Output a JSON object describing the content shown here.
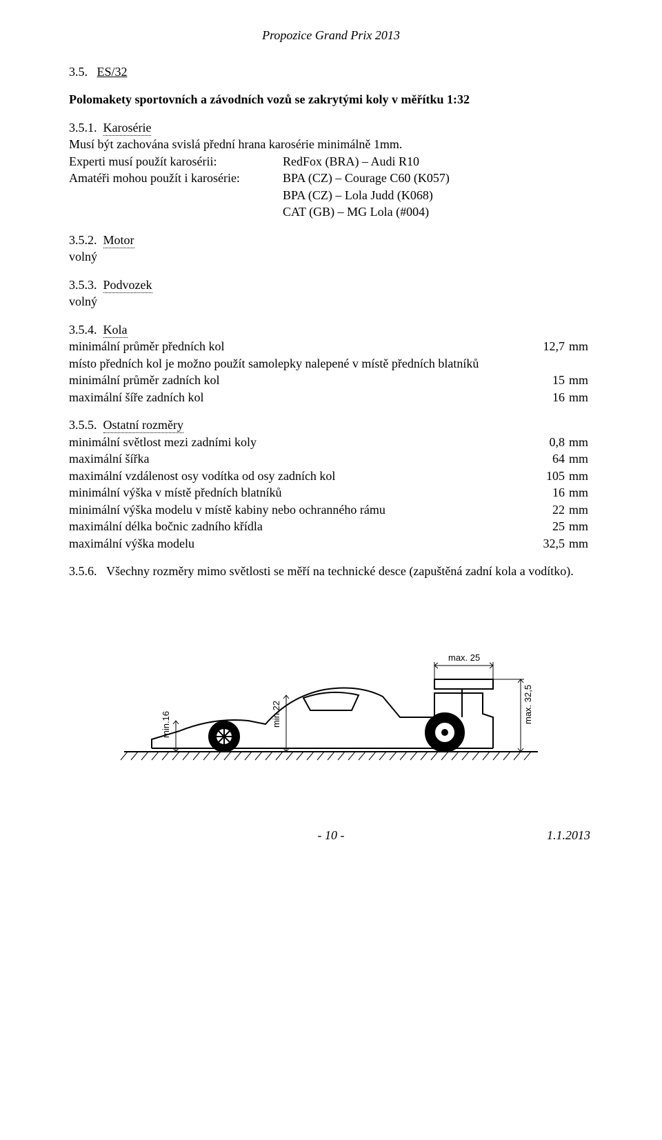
{
  "header": {
    "title": "Propozice Grand Prix 2013"
  },
  "sec35": {
    "num": "3.5.",
    "code": "ES/32",
    "subtitle": "Polomakety sportovních a závodních vozů se zakrytými koly v měřítku 1:32"
  },
  "s351": {
    "num": "3.5.1.",
    "title": "Karosérie",
    "line1": "Musí být zachována svislá přední hrana karosérie minimálně 1mm.",
    "expertLabel": "Experti musí použít karosérii:",
    "amatLabel": "Amatéři mohou použít i karosérie:",
    "lines": [
      "RedFox (BRA) – Audi R10",
      "BPA (CZ) – Courage C60 (K057)",
      "BPA (CZ) – Lola Judd (K068)",
      "CAT (GB) – MG Lola (#004)"
    ]
  },
  "s352": {
    "num": "3.5.2.",
    "title": "Motor",
    "val": "volný"
  },
  "s353": {
    "num": "3.5.3.",
    "title": "Podvozek",
    "val": "volný"
  },
  "s354": {
    "num": "3.5.4.",
    "title": "Kola",
    "rows": [
      {
        "label": "minimální průměr předních kol",
        "val": "12,7",
        "unit": "mm"
      },
      {
        "label": "místo předních kol je možno použít samolepky nalepené v místě předních blatníků",
        "val": "",
        "unit": ""
      },
      {
        "label": "minimální průměr zadních kol",
        "val": "15",
        "unit": "mm"
      },
      {
        "label": "maximální šíře zadních kol",
        "val": "16",
        "unit": "mm"
      }
    ]
  },
  "s355": {
    "num": "3.5.5.",
    "title": "Ostatní rozměry",
    "rows": [
      {
        "label": "minimální světlost mezi zadními koly",
        "val": "0,8",
        "unit": "mm"
      },
      {
        "label": "maximální šířka",
        "val": "64",
        "unit": "mm"
      },
      {
        "label": "maximální vzdálenost osy vodítka od osy zadních kol",
        "val": "105",
        "unit": "mm"
      },
      {
        "label": "minimální výška v místě předních blatníků",
        "val": "16",
        "unit": "mm"
      },
      {
        "label": "minimální výška modelu v místě kabiny nebo ochranného rámu",
        "val": "22",
        "unit": "mm"
      },
      {
        "label": "maximální délka bočnic zadního křídla",
        "val": "25",
        "unit": "mm"
      },
      {
        "label": "maximální výška modelu",
        "val": "32,5",
        "unit": "mm"
      }
    ]
  },
  "s356": {
    "num": "3.5.6.",
    "text": "Všechny rozměry mimo světlosti se měří na technické desce (zapuštěná zadní kola a vodítko)."
  },
  "figure": {
    "type": "diagram",
    "dim_labels": {
      "min16": "min.16",
      "min22": "min.22",
      "max25": "max. 25",
      "max325": "max. 32,5"
    },
    "stroke": "#000000",
    "stroke_width": 2,
    "background": "#ffffff"
  },
  "footer": {
    "page": "- 10 -",
    "date": "1.1.2013"
  }
}
